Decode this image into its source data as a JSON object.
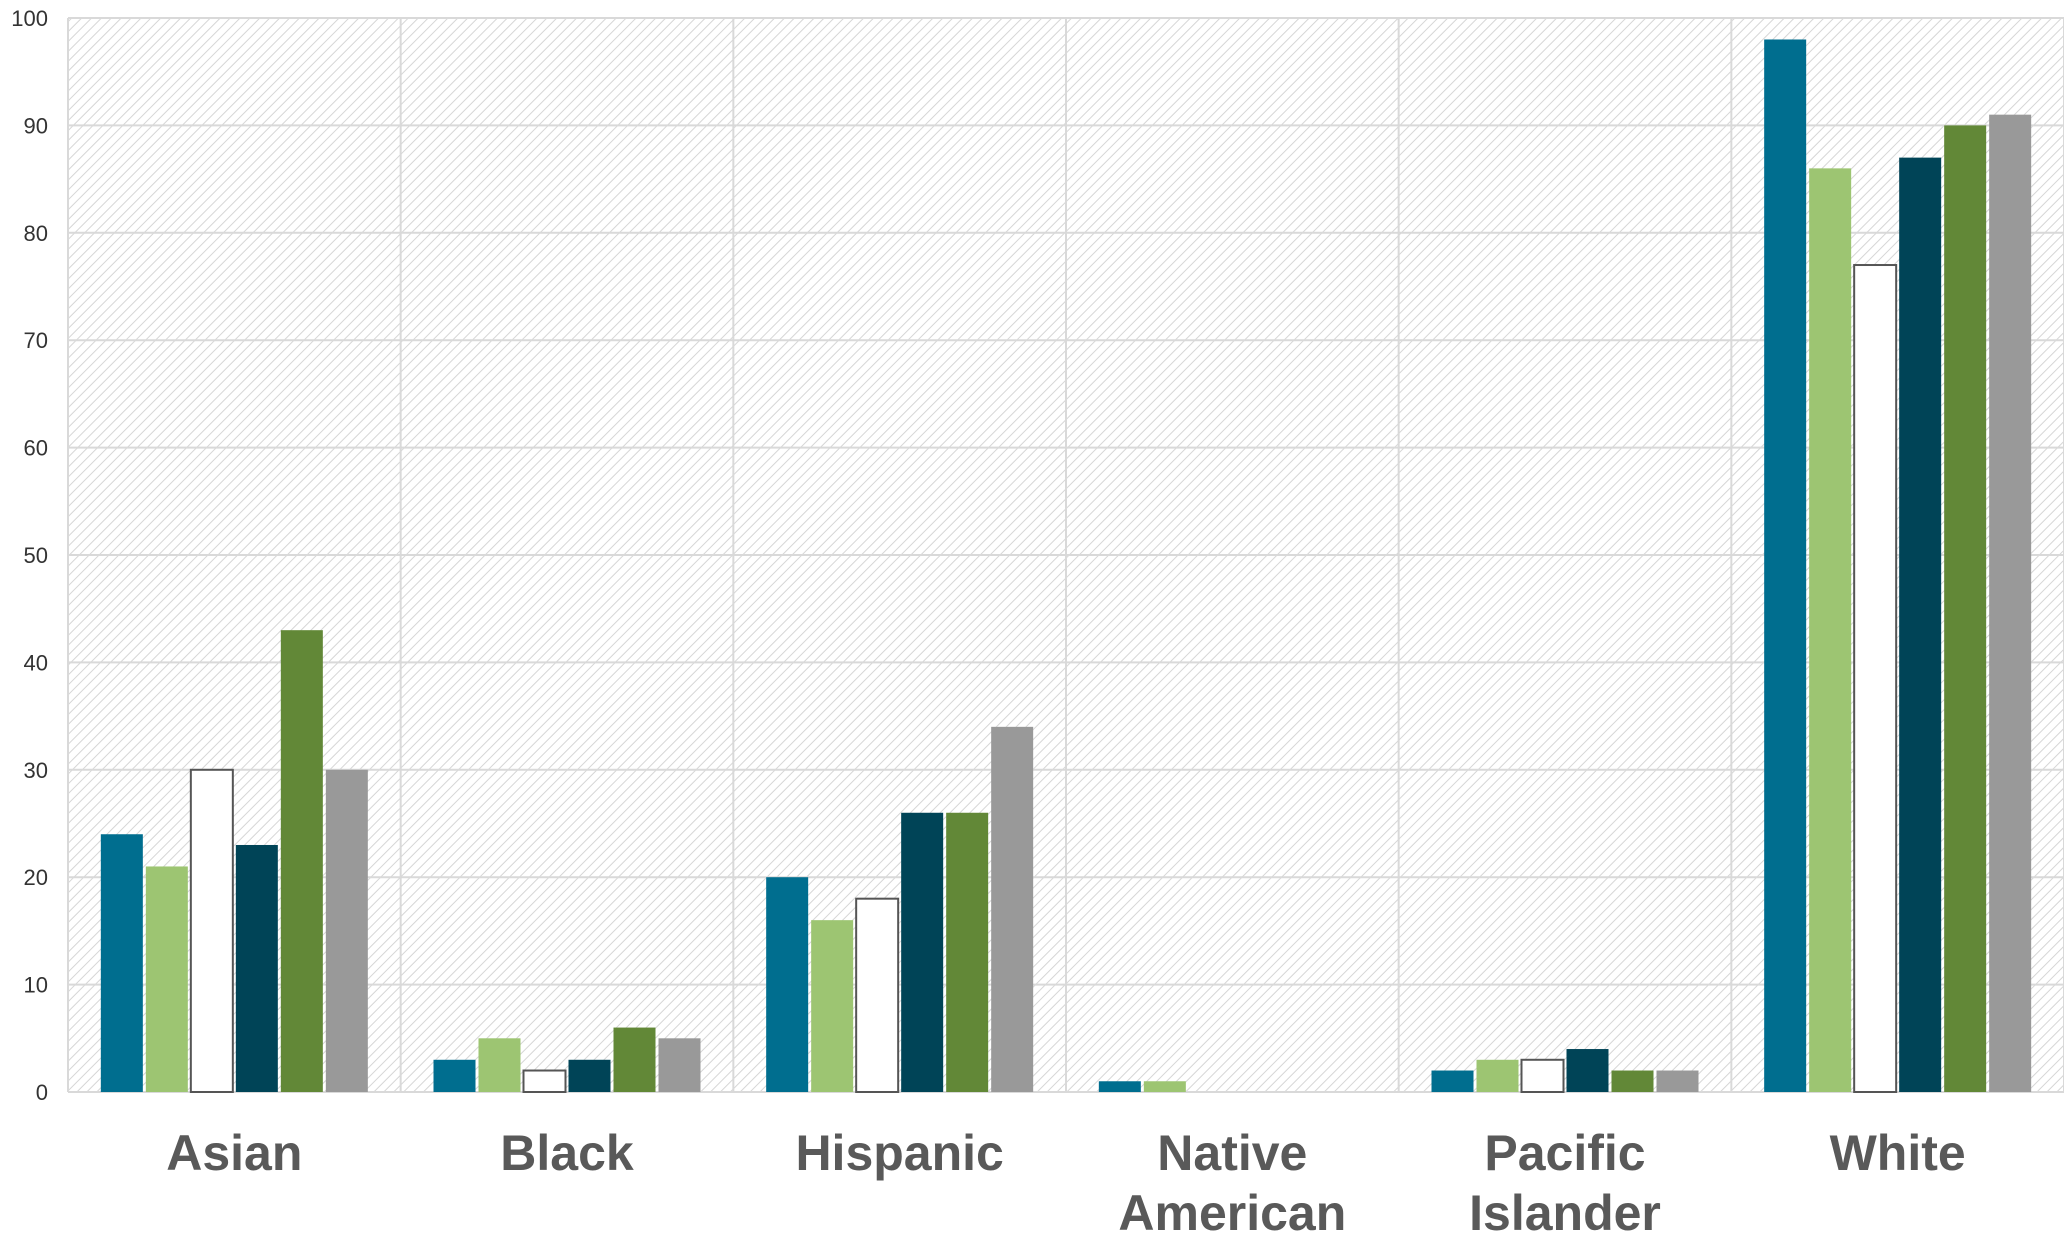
{
  "chart_data": {
    "type": "bar",
    "title": "",
    "xlabel": "",
    "ylabel": "",
    "ylim": [
      0,
      100
    ],
    "yticks": [
      0,
      10,
      20,
      30,
      40,
      50,
      60,
      70,
      80,
      90,
      100
    ],
    "grid": true,
    "legend": "none",
    "categories": [
      [
        "Asian"
      ],
      [
        "Black"
      ],
      [
        "Hispanic"
      ],
      [
        "Native",
        "American"
      ],
      [
        "Pacific",
        "Islander"
      ],
      [
        "White"
      ]
    ],
    "series": [
      {
        "color": "#006E8F",
        "values": [
          24,
          3,
          20,
          1,
          2,
          98
        ]
      },
      {
        "color": "#9DC572",
        "values": [
          21,
          5,
          16,
          1,
          3,
          86
        ]
      },
      {
        "color": "#FFFFFF",
        "values": [
          30,
          2,
          18,
          0,
          3,
          77
        ]
      },
      {
        "color": "#004457",
        "values": [
          23,
          3,
          26,
          0,
          4,
          87
        ]
      },
      {
        "color": "#628837",
        "values": [
          43,
          6,
          26,
          0,
          2,
          90
        ]
      },
      {
        "color": "#999999",
        "values": [
          30,
          5,
          34,
          0,
          2,
          91
        ]
      }
    ]
  }
}
